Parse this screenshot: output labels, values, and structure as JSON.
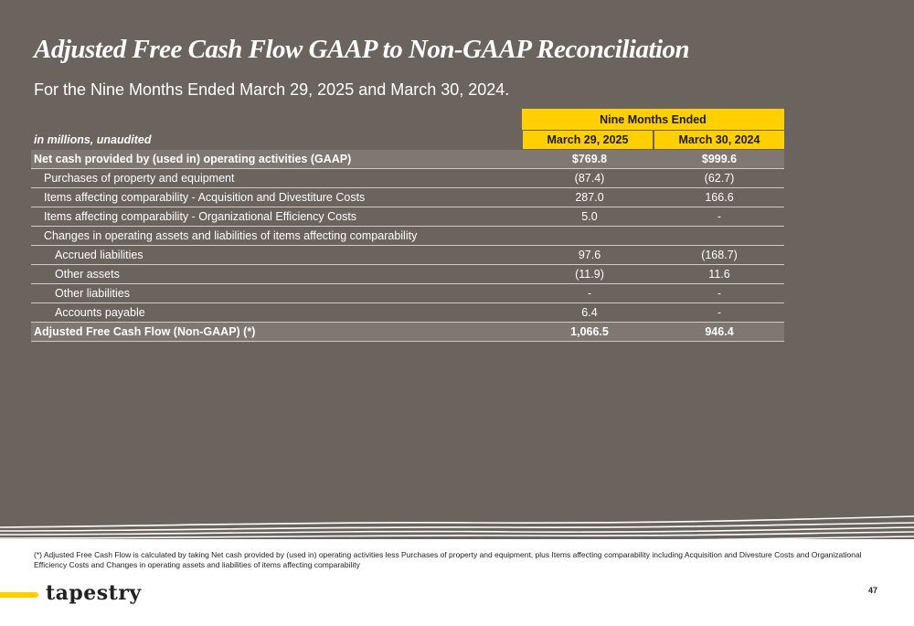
{
  "title": "Adjusted Free Cash Flow GAAP to Non-GAAP Reconciliation",
  "subtitle": "For the Nine Months Ended March 29, 2025 and March 30, 2024.",
  "table": {
    "group_header": "Nine Months Ended",
    "units_label": "in millions, unaudited",
    "columns": [
      "March 29, 2025",
      "March 30, 2024"
    ],
    "rows": [
      {
        "label": "Net cash provided by (used in) operating activities (GAAP)",
        "v1": "$769.8",
        "v2": "$999.6",
        "style": "total"
      },
      {
        "label": "Purchases of property and equipment",
        "v1": "(87.4)",
        "v2": "(62.7)",
        "style": "ind1"
      },
      {
        "label": "Items affecting comparability - Acquisition and Divestiture Costs",
        "v1": "287.0",
        "v2": "166.6",
        "style": "ind1"
      },
      {
        "label": "Items affecting comparability - Organizational Efficiency Costs",
        "v1": "5.0",
        "v2": "-",
        "style": "ind1"
      },
      {
        "label": "Changes in operating assets and liabilities of items affecting comparability",
        "v1": "",
        "v2": "",
        "style": "ind1"
      },
      {
        "label": "Accrued liabilities",
        "v1": "97.6",
        "v2": "(168.7)",
        "style": "ind2"
      },
      {
        "label": "Other assets",
        "v1": "(11.9)",
        "v2": "11.6",
        "style": "ind2"
      },
      {
        "label": "Other liabilities",
        "v1": "-",
        "v2": "-",
        "style": "ind2"
      },
      {
        "label": "Accounts payable",
        "v1": "6.4",
        "v2": "-",
        "style": "ind2"
      },
      {
        "label": "Adjusted Free Cash Flow (Non-GAAP) (*)",
        "v1": "1,066.5",
        "v2": "946.4",
        "style": "total"
      }
    ]
  },
  "footnote": "(*) Adjusted Free Cash Flow is calculated by taking Net cash provided by (used in) operating activities less Purchases of property and equipment, plus Items affecting comparability including Acquisition and Divesture Costs and Organizational Efficiency Costs and Changes in operating assets and liabilities of items affecting comparability",
  "logo": "tapestry",
  "page_number": "47",
  "colors": {
    "background": "#6b635e",
    "accent_yellow": "#ffcf00",
    "row_shade": "#7e7772"
  }
}
